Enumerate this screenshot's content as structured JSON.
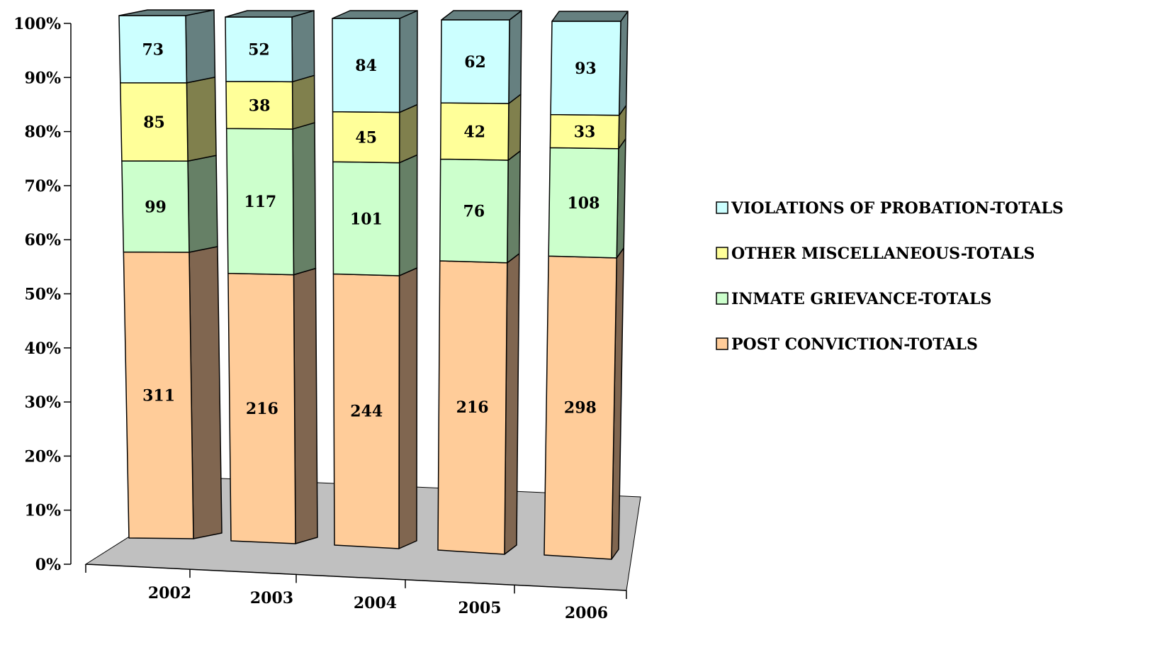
{
  "chart_data": {
    "type": "bar",
    "stacked": true,
    "normalized": true,
    "three_d": true,
    "categories": [
      "2002",
      "2003",
      "2004",
      "2005",
      "2006"
    ],
    "series": [
      {
        "name": "POST CONVICTION-TOTALS",
        "values": [
          311,
          216,
          244,
          216,
          298
        ],
        "color": "#FFCC99",
        "side_color": "#806650"
      },
      {
        "name": "INMATE GRIEVANCE-TOTALS",
        "values": [
          99,
          117,
          101,
          76,
          108
        ],
        "color": "#CCFFCC",
        "side_color": "#668066"
      },
      {
        "name": "OTHER MISCELLANEOUS-TOTALS",
        "values": [
          85,
          38,
          45,
          42,
          33
        ],
        "color": "#FFFF99",
        "side_color": "#80804D"
      },
      {
        "name": "VIOLATIONS OF PROBATION-TOTALS",
        "values": [
          73,
          52,
          84,
          62,
          93
        ],
        "color": "#CCFFFF",
        "side_color": "#668080"
      }
    ],
    "yticks": [
      "0%",
      "10%",
      "20%",
      "30%",
      "40%",
      "50%",
      "60%",
      "70%",
      "80%",
      "90%",
      "100%"
    ],
    "ylim": [
      0,
      100
    ],
    "legend_position": "right",
    "floor_color": "#C0C0C0",
    "grid": false
  }
}
